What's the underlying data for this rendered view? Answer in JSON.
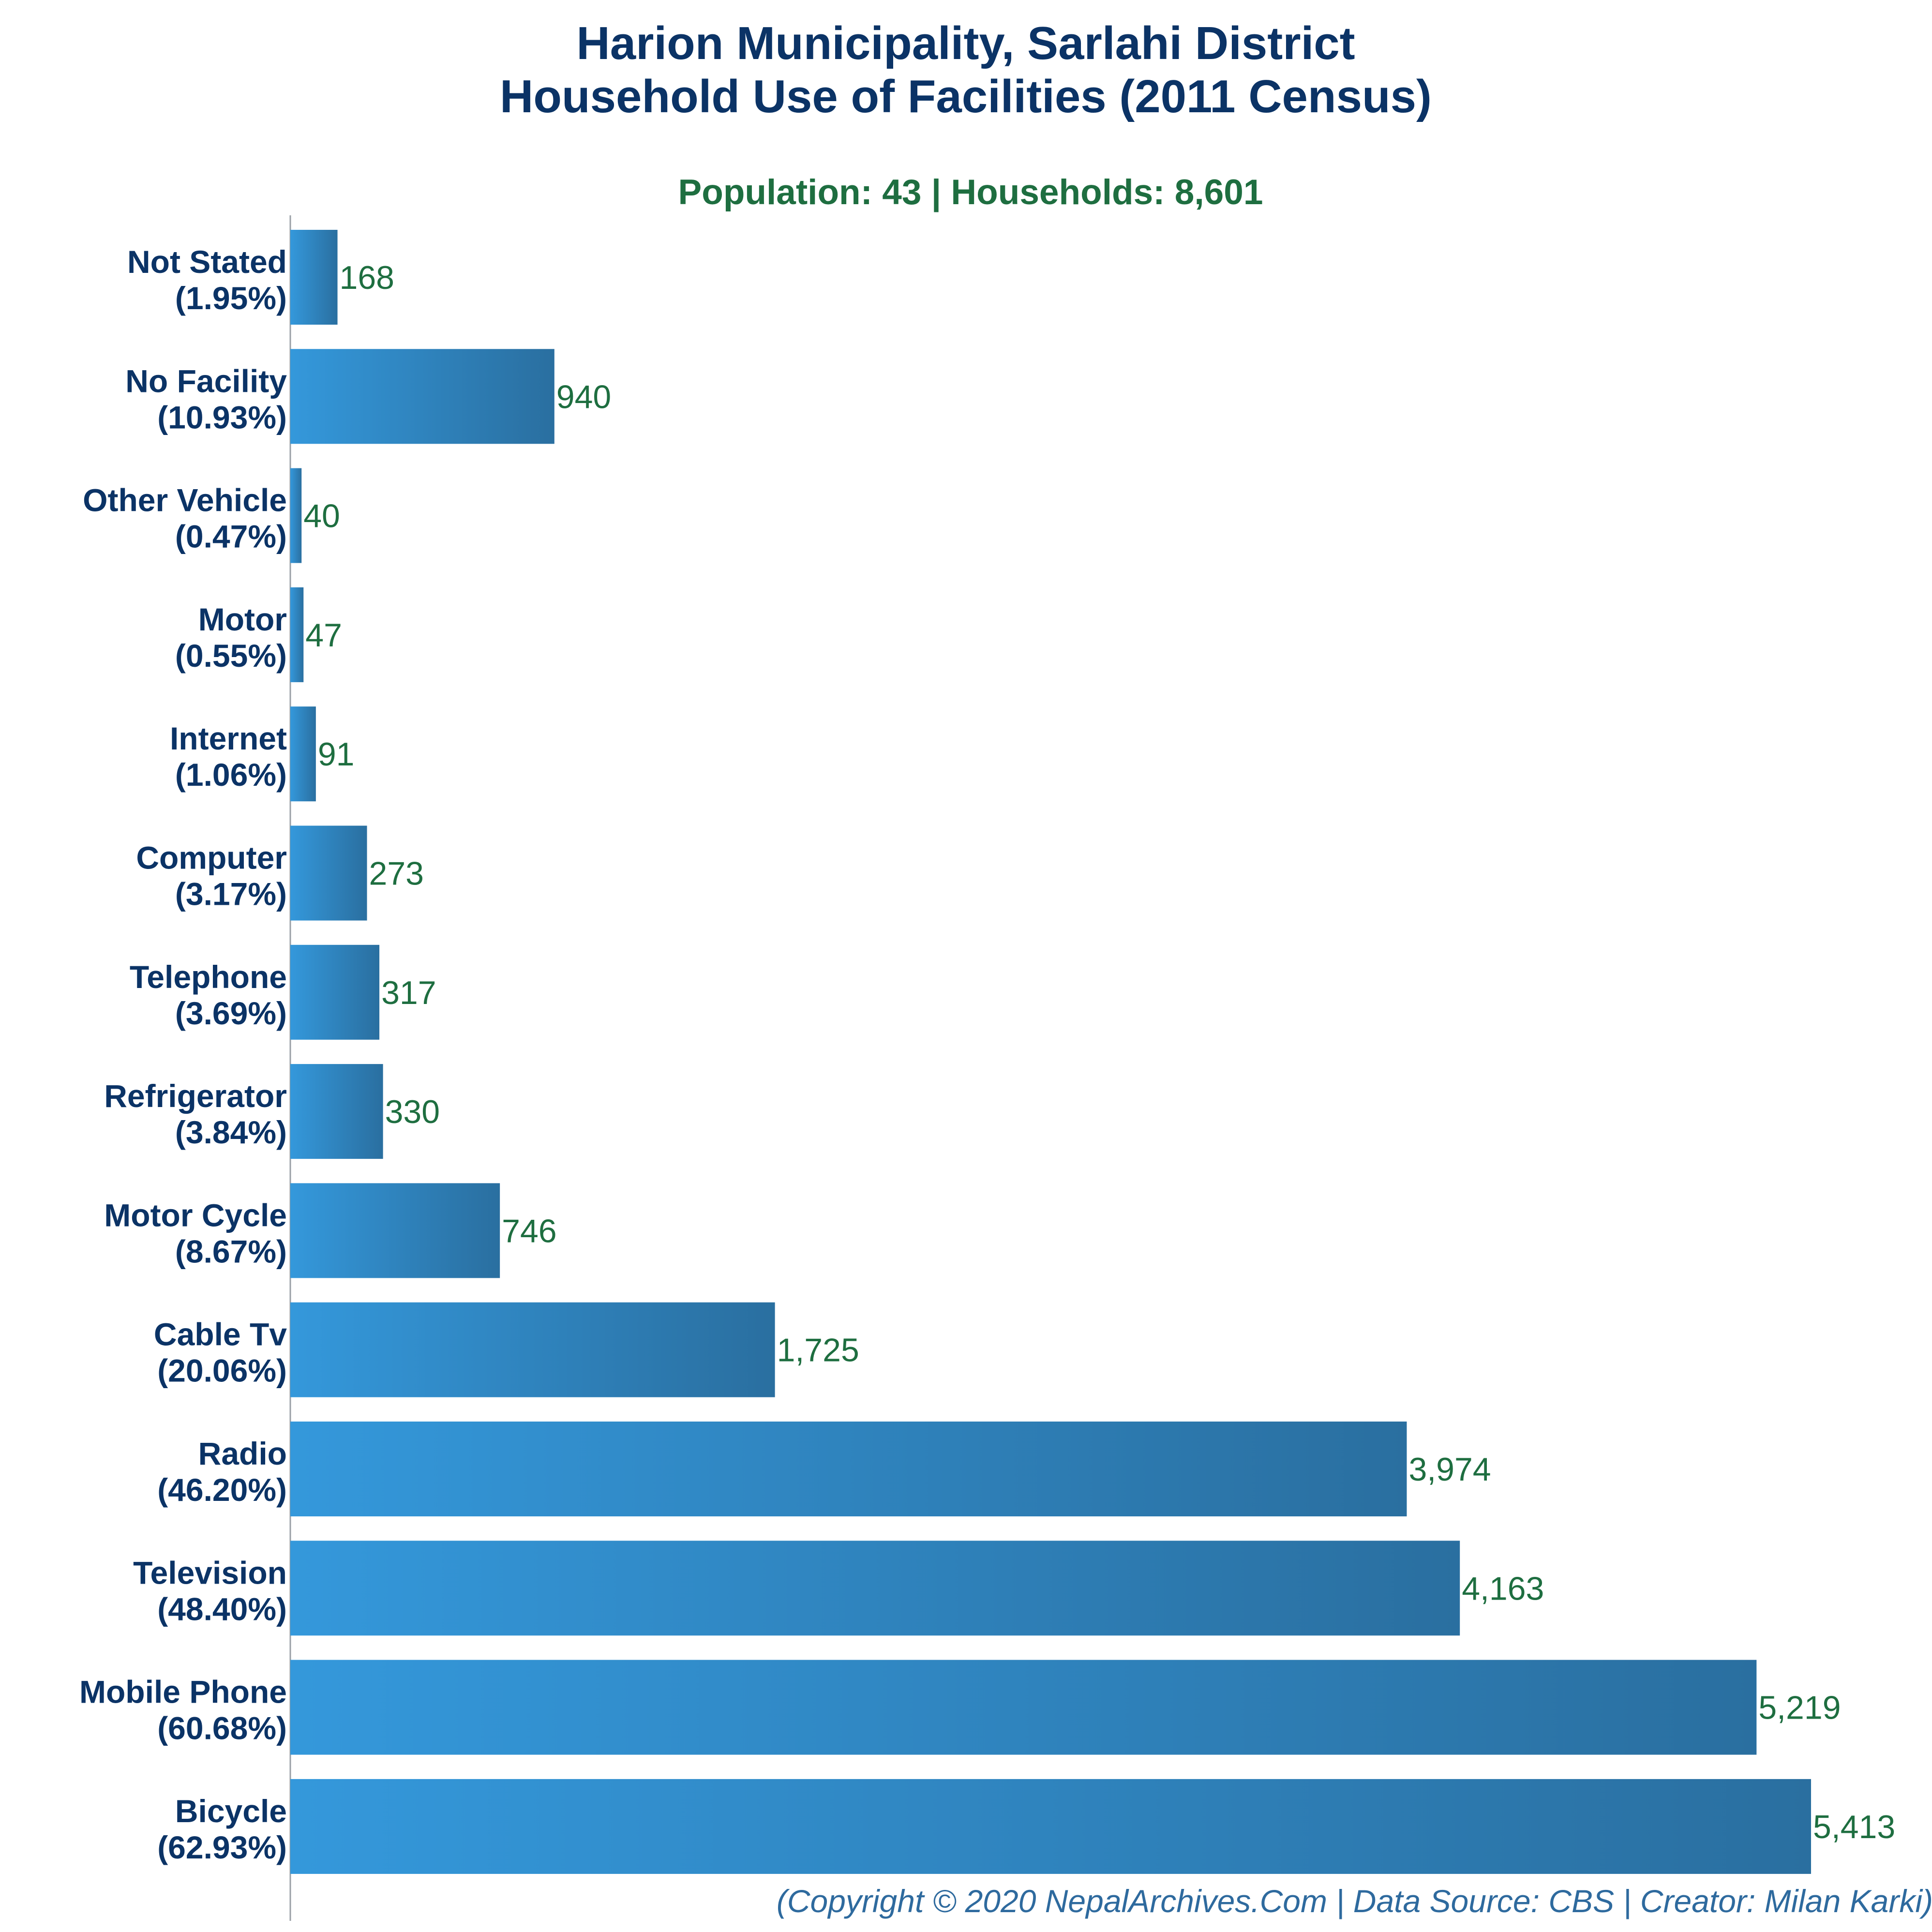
{
  "chart_data": {
    "type": "bar",
    "orientation": "horizontal",
    "title_line1": "Harion Municipality, Sarlahi District",
    "title_line2": "Household Use of Facilities (2011 Census)",
    "subtitle": "Population: 43 | Households: 8,601",
    "footer": "(Copyright © 2020 NepalArchives.Com | Data Source: CBS | Creator: Milan Karki)",
    "categories": [
      "Not Stated",
      "No Facility",
      "Other Vehicle",
      "Motor",
      "Internet",
      "Computer",
      "Telephone",
      "Refrigerator",
      "Motor Cycle",
      "Cable Tv",
      "Radio",
      "Television",
      "Mobile Phone",
      "Bicycle"
    ],
    "percent_labels": [
      "(1.95%)",
      "(10.93%)",
      "(0.47%)",
      "(0.55%)",
      "(1.06%)",
      "(3.17%)",
      "(3.69%)",
      "(3.84%)",
      "(8.67%)",
      "(20.06%)",
      "(46.20%)",
      "(48.40%)",
      "(60.68%)",
      "(62.93%)"
    ],
    "values": [
      168,
      940,
      40,
      47,
      91,
      273,
      317,
      330,
      746,
      1725,
      3974,
      4163,
      5219,
      5413
    ],
    "value_labels": [
      "168",
      "940",
      "40",
      "47",
      "91",
      "273",
      "317",
      "330",
      "746",
      "1,725",
      "3,974",
      "4,163",
      "5,219",
      "5,413"
    ],
    "xlim": [
      0,
      5413
    ],
    "grid": false,
    "legend": "none",
    "colors": {
      "bar_start": "#3498db",
      "bar_end": "#2a6fa0",
      "title": "#0b3366",
      "subtitle": "#1e6e40",
      "value_label": "#1e6e40",
      "axis": "#9aa0a6",
      "footer": "#2e6a9e"
    }
  }
}
